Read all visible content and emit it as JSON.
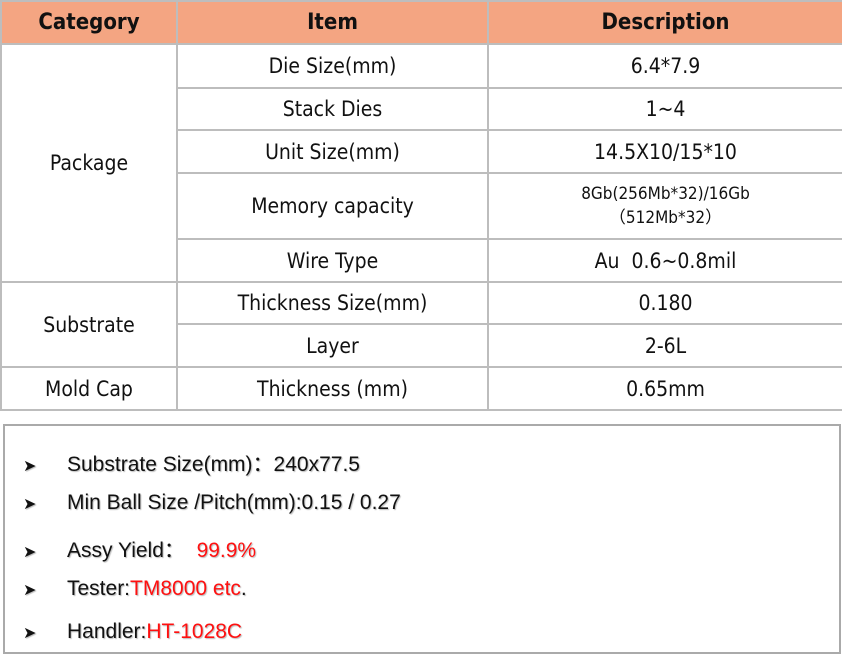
{
  "table": {
    "headers": [
      "Category",
      "Item",
      "Description"
    ],
    "groups": [
      {
        "category": "Package",
        "rows": [
          {
            "item": "Die Size(mm)",
            "description": "6.4*7.9"
          },
          {
            "item": "Stack Dies",
            "description": "1~4"
          },
          {
            "item": "Unit Size(mm)",
            "description": "14.5X10/15*10"
          },
          {
            "item": "Memory capacity",
            "description_line1": "8Gb(256Mb*32)/16Gb",
            "description_line2": "（512Mb*32）"
          },
          {
            "item": "Wire Type",
            "description": "Au  0.6~0.8mil"
          }
        ]
      },
      {
        "category": "Substrate",
        "rows": [
          {
            "item": "Thickness Size(mm)",
            "description": "0.180"
          },
          {
            "item": "Layer",
            "description": "2-6L"
          }
        ]
      },
      {
        "category": "Mold Cap",
        "rows": [
          {
            "item": "Thickness (mm)",
            "description": "0.65mm"
          }
        ]
      }
    ]
  },
  "bullets": [
    {
      "label": "Substrate Size(mm)：240x77.5",
      "value": ""
    },
    {
      "label": "Min Ball Size /Pitch(mm):0.15 / 0.27",
      "value": ""
    },
    {
      "label": "Assy Yield：  ",
      "value": "99.9%"
    },
    {
      "label": "Tester:",
      "value": "TM8000 etc",
      "suffix": "."
    },
    {
      "label": "Handler:",
      "value": "HT-1028C"
    }
  ],
  "bullet_icon": "arrowhead-bullet-icon",
  "colors": {
    "header_bg": "#f4a582",
    "highlight": "#ff1010"
  }
}
